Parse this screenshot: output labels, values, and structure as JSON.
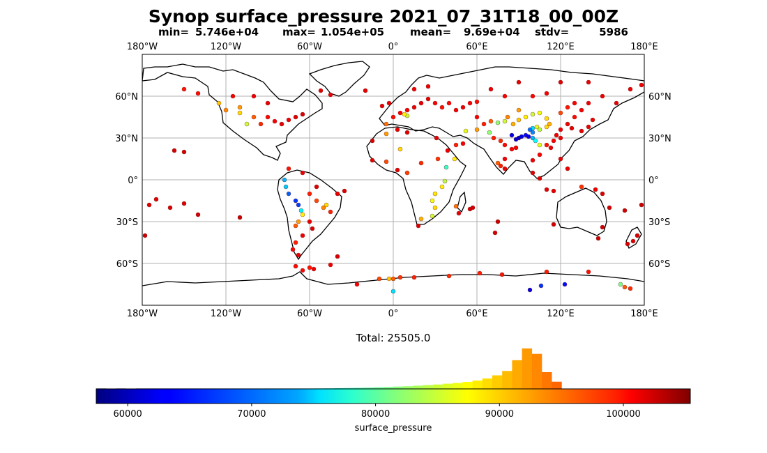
{
  "chart_data": {
    "type": "scatter-map",
    "title": "Synop surface_pressure 2021_07_31T18_00_00Z",
    "stats": {
      "min_label": "min=",
      "min": "5.746e+04",
      "max_label": "max=",
      "max": "1.054e+05",
      "mean_label": "mean=",
      "mean": "9.69e+04",
      "stdv_label": "stdv=",
      "stdv": "5986"
    },
    "map": {
      "lon_range": [
        -180,
        180
      ],
      "lat_range": [
        -90,
        90
      ],
      "lon_ticks": [
        -180,
        -120,
        -60,
        0,
        60,
        120,
        180
      ],
      "lon_tick_labels": [
        "180°W",
        "120°W",
        "60°W",
        "0°",
        "60°E",
        "120°E",
        "180°E"
      ],
      "lat_ticks": [
        60,
        30,
        0,
        -30,
        -60
      ],
      "lat_tick_labels": [
        "60°N",
        "30°N",
        "0°",
        "30°S",
        "60°S"
      ],
      "grid": true
    },
    "total_label": "Total: 25505.0",
    "colorbar": {
      "colormap": "jet",
      "range": [
        57460,
        105400
      ],
      "ticks": [
        60000,
        70000,
        80000,
        90000,
        100000
      ],
      "tick_labels": [
        "60000",
        "70000",
        "80000",
        "90000",
        "100000"
      ],
      "label": "surface_pressure"
    },
    "histogram": {
      "bin_start": 57460,
      "bin_width": 799,
      "counts": [
        2,
        0,
        1,
        0,
        1,
        2,
        1,
        1,
        3,
        3,
        2,
        4,
        5,
        4,
        6,
        6,
        5,
        8,
        7,
        9,
        10,
        8,
        12,
        14,
        18,
        22,
        26,
        32,
        40,
        48,
        58,
        66,
        80,
        95,
        110,
        130,
        150,
        175,
        210,
        260,
        340,
        450,
        720,
        1015,
        880,
        420,
        180,
        0,
        0,
        0
      ]
    },
    "points": [
      {
        "lon": -150,
        "lat": 65,
        "v": 98500
      },
      {
        "lon": -140,
        "lat": 62,
        "v": 99000
      },
      {
        "lon": -125,
        "lat": 55,
        "v": 90000
      },
      {
        "lon": -120,
        "lat": 50,
        "v": 93000
      },
      {
        "lon": -110,
        "lat": 48,
        "v": 89000
      },
      {
        "lon": -105,
        "lat": 40,
        "v": 85000
      },
      {
        "lon": -100,
        "lat": 45,
        "v": 95000
      },
      {
        "lon": -95,
        "lat": 40,
        "v": 97500
      },
      {
        "lon": -90,
        "lat": 45,
        "v": 99000
      },
      {
        "lon": -85,
        "lat": 42,
        "v": 99500
      },
      {
        "lon": -80,
        "lat": 40,
        "v": 100500
      },
      {
        "lon": -75,
        "lat": 43,
        "v": 100000
      },
      {
        "lon": -70,
        "lat": 45,
        "v": 100800
      },
      {
        "lon": -65,
        "lat": 47,
        "v": 101200
      },
      {
        "lon": -115,
        "lat": 60,
        "v": 99800
      },
      {
        "lon": -100,
        "lat": 60,
        "v": 100200
      },
      {
        "lon": -90,
        "lat": 55,
        "v": 100400
      },
      {
        "lon": -110,
        "lat": 52,
        "v": 92000
      },
      {
        "lon": -150,
        "lat": 20,
        "v": 101300
      },
      {
        "lon": -157,
        "lat": 21,
        "v": 101400
      },
      {
        "lon": -170,
        "lat": -14,
        "v": 100800
      },
      {
        "lon": -175,
        "lat": -18,
        "v": 100900
      },
      {
        "lon": -160,
        "lat": -20,
        "v": 101100
      },
      {
        "lon": -150,
        "lat": -17,
        "v": 101000
      },
      {
        "lon": -140,
        "lat": -25,
        "v": 101500
      },
      {
        "lon": -178,
        "lat": -40,
        "v": 101700
      },
      {
        "lon": -110,
        "lat": -27,
        "v": 101900
      },
      {
        "lon": -78,
        "lat": 0,
        "v": 72000
      },
      {
        "lon": -77,
        "lat": -5,
        "v": 73000
      },
      {
        "lon": -75,
        "lat": -10,
        "v": 68000
      },
      {
        "lon": -70,
        "lat": -15,
        "v": 66000
      },
      {
        "lon": -68,
        "lat": -18,
        "v": 66500
      },
      {
        "lon": -66,
        "lat": -22,
        "v": 75000
      },
      {
        "lon": -65,
        "lat": -25,
        "v": 88000
      },
      {
        "lon": -68,
        "lat": -30,
        "v": 92000
      },
      {
        "lon": -70,
        "lat": -33,
        "v": 95000
      },
      {
        "lon": -60,
        "lat": -10,
        "v": 98000
      },
      {
        "lon": -55,
        "lat": -15,
        "v": 96000
      },
      {
        "lon": -50,
        "lat": -20,
        "v": 93000
      },
      {
        "lon": -45,
        "lat": -23,
        "v": 98000
      },
      {
        "lon": -40,
        "lat": -10,
        "v": 100500
      },
      {
        "lon": -35,
        "lat": -8,
        "v": 101000
      },
      {
        "lon": -60,
        "lat": -30,
        "v": 100500
      },
      {
        "lon": -58,
        "lat": -35,
        "v": 101000
      },
      {
        "lon": -65,
        "lat": -40,
        "v": 100000
      },
      {
        "lon": -70,
        "lat": -45,
        "v": 98000
      },
      {
        "lon": -72,
        "lat": -50,
        "v": 99500
      },
      {
        "lon": -68,
        "lat": -54,
        "v": 100000
      },
      {
        "lon": -55,
        "lat": -5,
        "v": 100800
      },
      {
        "lon": -65,
        "lat": 5,
        "v": 100200
      },
      {
        "lon": -75,
        "lat": 8,
        "v": 98500
      },
      {
        "lon": -48,
        "lat": -18,
        "v": 89000
      },
      {
        "lon": -5,
        "lat": 40,
        "v": 94000
      },
      {
        "lon": 0,
        "lat": 45,
        "v": 99000
      },
      {
        "lon": 5,
        "lat": 48,
        "v": 99500
      },
      {
        "lon": 10,
        "lat": 50,
        "v": 99800
      },
      {
        "lon": 15,
        "lat": 52,
        "v": 100200
      },
      {
        "lon": 20,
        "lat": 55,
        "v": 100500
      },
      {
        "lon": 25,
        "lat": 58,
        "v": 100800
      },
      {
        "lon": 30,
        "lat": 55,
        "v": 99500
      },
      {
        "lon": 35,
        "lat": 52,
        "v": 98800
      },
      {
        "lon": 40,
        "lat": 55,
        "v": 99200
      },
      {
        "lon": 45,
        "lat": 50,
        "v": 100000
      },
      {
        "lon": 50,
        "lat": 52,
        "v": 100300
      },
      {
        "lon": 55,
        "lat": 55,
        "v": 99700
      },
      {
        "lon": 60,
        "lat": 56,
        "v": 99000
      },
      {
        "lon": 10,
        "lat": 46,
        "v": 85000
      },
      {
        "lon": 8,
        "lat": 47,
        "v": 88000
      },
      {
        "lon": -8,
        "lat": 53,
        "v": 100600
      },
      {
        "lon": -3,
        "lat": 55,
        "v": 100400
      },
      {
        "lon": 15,
        "lat": 65,
        "v": 100000
      },
      {
        "lon": 25,
        "lat": 67,
        "v": 100300
      },
      {
        "lon": -20,
        "lat": 64,
        "v": 100700
      },
      {
        "lon": -45,
        "lat": 61,
        "v": 100100
      },
      {
        "lon": -52,
        "lat": 64,
        "v": 100500
      },
      {
        "lon": -15,
        "lat": 28,
        "v": 101200
      },
      {
        "lon": -5,
        "lat": 33,
        "v": 92000
      },
      {
        "lon": 3,
        "lat": 36,
        "v": 100500
      },
      {
        "lon": 10,
        "lat": 34,
        "v": 100800
      },
      {
        "lon": 5,
        "lat": 22,
        "v": 89000
      },
      {
        "lon": -5,
        "lat": 13,
        "v": 96000
      },
      {
        "lon": -15,
        "lat": 14,
        "v": 100500
      },
      {
        "lon": 3,
        "lat": 7,
        "v": 100800
      },
      {
        "lon": 10,
        "lat": 5,
        "v": 96500
      },
      {
        "lon": 20,
        "lat": 12,
        "v": 97500
      },
      {
        "lon": 32,
        "lat": 15,
        "v": 97000
      },
      {
        "lon": 38,
        "lat": 9,
        "v": 78000
      },
      {
        "lon": 37,
        "lat": -1,
        "v": 84000
      },
      {
        "lon": 35,
        "lat": -5,
        "v": 88000
      },
      {
        "lon": 30,
        "lat": -10,
        "v": 88500
      },
      {
        "lon": 28,
        "lat": -15,
        "v": 87000
      },
      {
        "lon": 30,
        "lat": -20,
        "v": 89000
      },
      {
        "lon": 28,
        "lat": -26,
        "v": 85000
      },
      {
        "lon": 20,
        "lat": -28,
        "v": 91000
      },
      {
        "lon": 18,
        "lat": -33,
        "v": 100800
      },
      {
        "lon": 45,
        "lat": -19,
        "v": 94000
      },
      {
        "lon": 47,
        "lat": -24,
        "v": 100500
      },
      {
        "lon": 55,
        "lat": -21,
        "v": 101200
      },
      {
        "lon": 57,
        "lat": -20,
        "v": 101300
      },
      {
        "lon": 31,
        "lat": 30,
        "v": 100500
      },
      {
        "lon": 45,
        "lat": 25,
        "v": 98000
      },
      {
        "lon": 50,
        "lat": 26,
        "v": 99800
      },
      {
        "lon": 44,
        "lat": 15,
        "v": 88000
      },
      {
        "lon": 39,
        "lat": 21,
        "v": 100400
      },
      {
        "lon": 52,
        "lat": 35,
        "v": 86000
      },
      {
        "lon": 60,
        "lat": 36,
        "v": 92000
      },
      {
        "lon": 69,
        "lat": 34,
        "v": 82000
      },
      {
        "lon": 72,
        "lat": 30,
        "v": 98000
      },
      {
        "lon": 77,
        "lat": 28,
        "v": 97500
      },
      {
        "lon": 80,
        "lat": 25,
        "v": 99000
      },
      {
        "lon": 85,
        "lat": 22,
        "v": 99500
      },
      {
        "lon": 80,
        "lat": 15,
        "v": 99800
      },
      {
        "lon": 75,
        "lat": 12,
        "v": 95000
      },
      {
        "lon": 77,
        "lat": 10,
        "v": 98000
      },
      {
        "lon": 80,
        "lat": 8,
        "v": 100100
      },
      {
        "lon": 88,
        "lat": 23,
        "v": 99600
      },
      {
        "lon": 90,
        "lat": 30,
        "v": 60000
      },
      {
        "lon": 92,
        "lat": 31,
        "v": 62000
      },
      {
        "lon": 95,
        "lat": 32,
        "v": 64000
      },
      {
        "lon": 97,
        "lat": 31,
        "v": 63000
      },
      {
        "lon": 88,
        "lat": 29,
        "v": 61500
      },
      {
        "lon": 85,
        "lat": 32,
        "v": 62500
      },
      {
        "lon": 100,
        "lat": 34,
        "v": 70000
      },
      {
        "lon": 100,
        "lat": 30,
        "v": 72000
      },
      {
        "lon": 102,
        "lat": 28,
        "v": 76000
      },
      {
        "lon": 100,
        "lat": 37,
        "v": 74000
      },
      {
        "lon": 98,
        "lat": 36,
        "v": 69000
      },
      {
        "lon": 105,
        "lat": 36,
        "v": 84000
      },
      {
        "lon": 103,
        "lat": 38,
        "v": 86000
      },
      {
        "lon": 110,
        "lat": 38,
        "v": 89000
      },
      {
        "lon": 112,
        "lat": 40,
        "v": 91000
      },
      {
        "lon": 80,
        "lat": 42,
        "v": 85000
      },
      {
        "lon": 82,
        "lat": 45,
        "v": 93000
      },
      {
        "lon": 90,
        "lat": 43,
        "v": 90000
      },
      {
        "lon": 95,
        "lat": 45,
        "v": 88000
      },
      {
        "lon": 100,
        "lat": 47,
        "v": 85000
      },
      {
        "lon": 105,
        "lat": 48,
        "v": 87000
      },
      {
        "lon": 110,
        "lat": 44,
        "v": 89000
      },
      {
        "lon": 90,
        "lat": 50,
        "v": 92000
      },
      {
        "lon": 86,
        "lat": 40,
        "v": 91000
      },
      {
        "lon": 75,
        "lat": 41,
        "v": 82000
      },
      {
        "lon": 70,
        "lat": 42,
        "v": 95000
      },
      {
        "lon": 65,
        "lat": 40,
        "v": 98000
      },
      {
        "lon": 60,
        "lat": 45,
        "v": 99500
      },
      {
        "lon": 105,
        "lat": 25,
        "v": 86000
      },
      {
        "lon": 110,
        "lat": 25,
        "v": 98500
      },
      {
        "lon": 115,
        "lat": 28,
        "v": 99600
      },
      {
        "lon": 117,
        "lat": 32,
        "v": 100000
      },
      {
        "lon": 120,
        "lat": 30,
        "v": 100300
      },
      {
        "lon": 113,
        "lat": 23,
        "v": 100200
      },
      {
        "lon": 120,
        "lat": 36,
        "v": 100000
      },
      {
        "lon": 125,
        "lat": 40,
        "v": 100300
      },
      {
        "lon": 128,
        "lat": 37,
        "v": 100500
      },
      {
        "lon": 135,
        "lat": 35,
        "v": 100600
      },
      {
        "lon": 140,
        "lat": 38,
        "v": 100400
      },
      {
        "lon": 143,
        "lat": 43,
        "v": 100000
      },
      {
        "lon": 130,
        "lat": 45,
        "v": 99000
      },
      {
        "lon": 120,
        "lat": 48,
        "v": 96000
      },
      {
        "lon": 125,
        "lat": 52,
        "v": 98500
      },
      {
        "lon": 130,
        "lat": 55,
        "v": 99500
      },
      {
        "lon": 135,
        "lat": 50,
        "v": 99800
      },
      {
        "lon": 140,
        "lat": 55,
        "v": 100000
      },
      {
        "lon": 150,
        "lat": 60,
        "v": 100200
      },
      {
        "lon": 160,
        "lat": 55,
        "v": 100500
      },
      {
        "lon": 170,
        "lat": 65,
        "v": 100300
      },
      {
        "lon": 178,
        "lat": 68,
        "v": 100100
      },
      {
        "lon": 100,
        "lat": 60,
        "v": 99200
      },
      {
        "lon": 110,
        "lat": 62,
        "v": 99600
      },
      {
        "lon": 80,
        "lat": 60,
        "v": 99500
      },
      {
        "lon": 70,
        "lat": 65,
        "v": 100000
      },
      {
        "lon": 90,
        "lat": 70,
        "v": 100600
      },
      {
        "lon": 120,
        "lat": 70,
        "v": 100700
      },
      {
        "lon": 140,
        "lat": 70,
        "v": 100400
      },
      {
        "lon": 100,
        "lat": 14,
        "v": 100000
      },
      {
        "lon": 105,
        "lat": 18,
        "v": 99500
      },
      {
        "lon": 100,
        "lat": 5,
        "v": 100800
      },
      {
        "lon": 105,
        "lat": 1,
        "v": 101000
      },
      {
        "lon": 110,
        "lat": -7,
        "v": 100500
      },
      {
        "lon": 115,
        "lat": -8,
        "v": 100700
      },
      {
        "lon": 120,
        "lat": 15,
        "v": 100400
      },
      {
        "lon": 125,
        "lat": 8,
        "v": 100600
      },
      {
        "lon": 135,
        "lat": -5,
        "v": 97000
      },
      {
        "lon": 145,
        "lat": -7,
        "v": 100300
      },
      {
        "lon": 150,
        "lat": -10,
        "v": 100900
      },
      {
        "lon": 115,
        "lat": -32,
        "v": 101500
      },
      {
        "lon": 150,
        "lat": -34,
        "v": 101300
      },
      {
        "lon": 147,
        "lat": -42,
        "v": 101600
      },
      {
        "lon": 175,
        "lat": -40,
        "v": 101400
      },
      {
        "lon": 172,
        "lat": -44,
        "v": 100800
      },
      {
        "lon": 168,
        "lat": -46,
        "v": 101000
      },
      {
        "lon": 155,
        "lat": -20,
        "v": 101700
      },
      {
        "lon": 166,
        "lat": -22,
        "v": 101600
      },
      {
        "lon": 178,
        "lat": -18,
        "v": 101800
      },
      {
        "lon": 73,
        "lat": -38,
        "v": 101400
      },
      {
        "lon": 75,
        "lat": -30,
        "v": 102000
      },
      {
        "lon": -70,
        "lat": -62,
        "v": 99000
      },
      {
        "lon": -60,
        "lat": -63,
        "v": 98500
      },
      {
        "lon": -57,
        "lat": -64,
        "v": 100000
      },
      {
        "lon": -65,
        "lat": -65,
        "v": 99200
      },
      {
        "lon": -45,
        "lat": -61,
        "v": 100000
      },
      {
        "lon": -40,
        "lat": -55,
        "v": 101400
      },
      {
        "lon": -26,
        "lat": -75,
        "v": 99500
      },
      {
        "lon": -10,
        "lat": -71,
        "v": 96000
      },
      {
        "lon": -3,
        "lat": -71,
        "v": 90000
      },
      {
        "lon": 0,
        "lat": -71,
        "v": 95000
      },
      {
        "lon": 5,
        "lat": -70,
        "v": 97000
      },
      {
        "lon": 15,
        "lat": -70,
        "v": 98000
      },
      {
        "lon": 40,
        "lat": -69,
        "v": 97500
      },
      {
        "lon": 62,
        "lat": -67,
        "v": 98000
      },
      {
        "lon": 78,
        "lat": -68,
        "v": 98500
      },
      {
        "lon": 110,
        "lat": -66,
        "v": 98200
      },
      {
        "lon": 140,
        "lat": -66,
        "v": 98800
      },
      {
        "lon": 166,
        "lat": -77,
        "v": 95000
      },
      {
        "lon": 163,
        "lat": -75,
        "v": 81000
      },
      {
        "lon": 170,
        "lat": -78,
        "v": 97500
      },
      {
        "lon": 106,
        "lat": -76,
        "v": 66000
      },
      {
        "lon": 98,
        "lat": -79,
        "v": 62000
      },
      {
        "lon": 123,
        "lat": -75,
        "v": 64000
      },
      {
        "lon": 0,
        "lat": -80,
        "v": 74000
      }
    ]
  }
}
